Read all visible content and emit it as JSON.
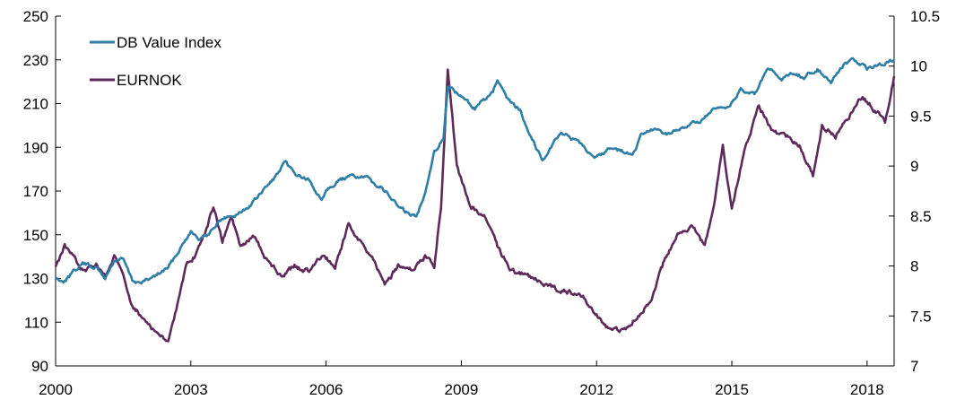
{
  "chart_data": {
    "type": "line",
    "title": "",
    "xlabel": "",
    "ylabel": "",
    "y2label": "",
    "grid": false,
    "legend_position": "top-left",
    "xlim": [
      2000,
      2018.6
    ],
    "x_ticks": [
      "2000",
      "2003",
      "2006",
      "2009",
      "2012",
      "2015",
      "2018"
    ],
    "y_left": {
      "range": [
        90,
        250
      ],
      "ticks": [
        "90",
        "110",
        "130",
        "150",
        "170",
        "190",
        "210",
        "230",
        "250"
      ]
    },
    "y_right": {
      "range": [
        7,
        10.5
      ],
      "ticks": [
        "7",
        "7.5",
        "8",
        "8.5",
        "9",
        "9.5",
        "10",
        "10.5"
      ]
    },
    "series": [
      {
        "name": "DB Value Index",
        "axis": "left",
        "color": "#2e7ea6",
        "x": [
          2000.0,
          2000.2,
          2000.4,
          2000.6,
          2000.9,
          2001.1,
          2001.3,
          2001.5,
          2001.7,
          2001.9,
          2002.2,
          2002.5,
          2002.8,
          2003.0,
          2003.2,
          2003.4,
          2003.6,
          2003.8,
          2004.0,
          2004.3,
          2004.6,
          2004.9,
          2005.1,
          2005.3,
          2005.6,
          2005.9,
          2006.0,
          2006.3,
          2006.6,
          2006.9,
          2007.2,
          2007.4,
          2007.6,
          2007.8,
          2008.0,
          2008.2,
          2008.4,
          2008.6,
          2008.7,
          2009.0,
          2009.3,
          2009.7,
          2009.8,
          2010.0,
          2010.3,
          2010.5,
          2010.8,
          2011.2,
          2011.6,
          2012.0,
          2012.3,
          2012.6,
          2012.8,
          2013.0,
          2013.3,
          2013.6,
          2014.0,
          2014.3,
          2014.6,
          2014.9,
          2015.2,
          2015.5,
          2015.8,
          2016.1,
          2016.3,
          2016.6,
          2016.9,
          2017.2,
          2017.5,
          2017.7,
          2018.0,
          2018.3,
          2018.6
        ],
        "values": [
          130,
          129,
          133,
          137,
          135,
          130,
          138,
          139,
          129,
          128,
          131,
          135,
          145,
          152,
          148,
          150,
          156,
          158,
          159,
          163,
          170,
          177,
          183,
          178,
          175,
          166,
          171,
          175,
          177,
          176,
          172,
          168,
          163,
          160,
          158,
          170,
          188,
          194,
          218,
          213,
          208,
          215,
          221,
          212,
          207,
          197,
          184,
          197,
          192,
          185,
          190,
          188,
          186,
          196,
          198,
          196,
          200,
          202,
          207,
          208,
          216,
          214,
          226,
          221,
          224,
          222,
          226,
          220,
          228,
          230,
          226,
          228,
          230
        ]
      },
      {
        "name": "EURNOK",
        "axis": "right",
        "color": "#5e2a5c",
        "x": [
          2000.0,
          2000.2,
          2000.4,
          2000.6,
          2000.9,
          2001.1,
          2001.3,
          2001.5,
          2001.7,
          2001.9,
          2002.1,
          2002.3,
          2002.5,
          2002.7,
          2002.9,
          2003.1,
          2003.3,
          2003.5,
          2003.7,
          2003.9,
          2004.1,
          2004.4,
          2004.7,
          2005.0,
          2005.3,
          2005.6,
          2005.9,
          2006.2,
          2006.5,
          2006.8,
          2007.0,
          2007.3,
          2007.6,
          2007.9,
          2008.2,
          2008.4,
          2008.55,
          2008.7,
          2008.9,
          2009.2,
          2009.5,
          2009.8,
          2010.1,
          2010.5,
          2010.9,
          2011.3,
          2011.7,
          2012.0,
          2012.3,
          2012.6,
          2012.9,
          2013.2,
          2013.5,
          2013.8,
          2014.1,
          2014.4,
          2014.6,
          2014.8,
          2015.0,
          2015.3,
          2015.6,
          2015.9,
          2016.2,
          2016.5,
          2016.8,
          2017.0,
          2017.3,
          2017.6,
          2017.9,
          2018.1,
          2018.4,
          2018.6
        ],
        "values": [
          8.0,
          8.2,
          8.1,
          7.95,
          8.0,
          7.9,
          8.1,
          7.9,
          7.6,
          7.5,
          7.4,
          7.3,
          7.25,
          7.6,
          8.0,
          8.1,
          8.3,
          8.6,
          8.25,
          8.5,
          8.2,
          8.3,
          8.05,
          7.9,
          8.0,
          7.95,
          8.1,
          8.0,
          8.4,
          8.2,
          8.1,
          7.8,
          8.0,
          7.95,
          8.1,
          8.0,
          8.6,
          10.0,
          9.0,
          8.6,
          8.5,
          8.2,
          7.95,
          7.9,
          7.8,
          7.75,
          7.7,
          7.5,
          7.35,
          7.35,
          7.5,
          7.65,
          8.05,
          8.3,
          8.4,
          8.2,
          8.6,
          9.2,
          8.55,
          9.2,
          9.6,
          9.35,
          9.3,
          9.2,
          8.9,
          9.4,
          9.3,
          9.5,
          9.7,
          9.6,
          9.45,
          9.9
        ]
      }
    ]
  }
}
